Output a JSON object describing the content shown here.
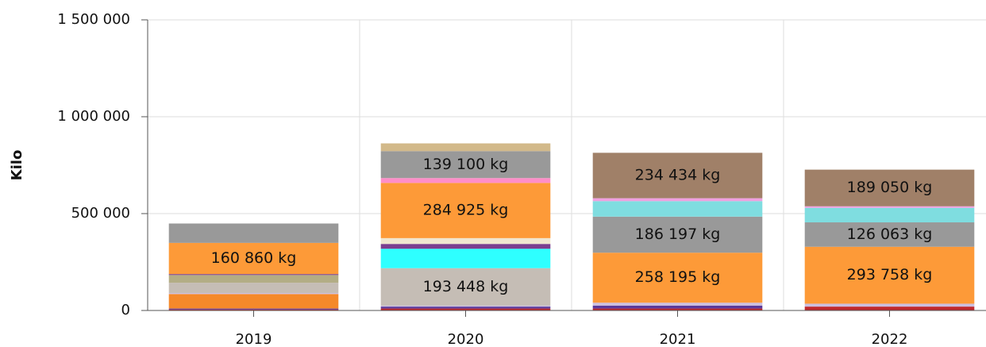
{
  "chart_data": {
    "type": "stacked_bar",
    "y_label": "Kilo",
    "categories": [
      "2019",
      "2020",
      "2021",
      "2022"
    ],
    "ylim": [
      0,
      1500000
    ],
    "yticks": [
      0,
      {
        "value": 500000,
        "label": "500 000"
      },
      {
        "value": 1000000,
        "label": "1 000 000"
      },
      {
        "value": 1500000,
        "label": "1 500 000"
      }
    ],
    "grid": true,
    "series": [
      {
        "color": "#c0282d",
        "values": [
          5000,
          10000,
          10000,
          20000
        ]
      },
      {
        "color": "#5b3a9b",
        "values": [
          5000,
          10000,
          15000,
          0
        ]
      },
      {
        "color": "#f5892a",
        "values": [
          75000,
          0,
          0,
          0
        ]
      },
      {
        "color": "#cbbfe0",
        "values": [
          5000,
          5000,
          15000,
          15000
        ]
      },
      {
        "color": "#c5bdb5",
        "values": [
          53000,
          193448,
          0,
          0
        ],
        "value_labels": [
          null,
          "193 448 kg",
          null,
          null
        ]
      },
      {
        "color": "#b3ad85",
        "values": [
          40000,
          0,
          0,
          0
        ]
      },
      {
        "color": "#2effff",
        "values": [
          0,
          100000,
          0,
          0
        ]
      },
      {
        "color": "#7b3f8f",
        "values": [
          5000,
          25000,
          0,
          0
        ]
      },
      {
        "color": "#f0e6d0",
        "values": [
          0,
          30000,
          0,
          0
        ]
      },
      {
        "color": "#fd9a38",
        "values": [
          160860,
          284925,
          258195,
          293758
        ],
        "value_labels": [
          "160 860 kg",
          "284 925 kg",
          "258 195 kg",
          "293 758 kg"
        ]
      },
      {
        "color": "#ff8ec8",
        "values": [
          0,
          25000,
          0,
          0
        ]
      },
      {
        "color": "#999999",
        "values": [
          100000,
          139100,
          186197,
          126063
        ],
        "value_labels": [
          null,
          "139 100 kg",
          "186 197 kg",
          "126 063 kg"
        ]
      },
      {
        "color": "#7fdde0",
        "values": [
          0,
          0,
          80000,
          75000
        ]
      },
      {
        "color": "#f0a0e0",
        "values": [
          0,
          0,
          15000,
          8000
        ]
      },
      {
        "color": "#a08068",
        "values": [
          0,
          0,
          234434,
          189050
        ],
        "value_labels": [
          null,
          null,
          "234 434 kg",
          "189 050 kg"
        ]
      },
      {
        "color": "#d2b98a",
        "values": [
          0,
          40000,
          0,
          0
        ]
      }
    ]
  }
}
